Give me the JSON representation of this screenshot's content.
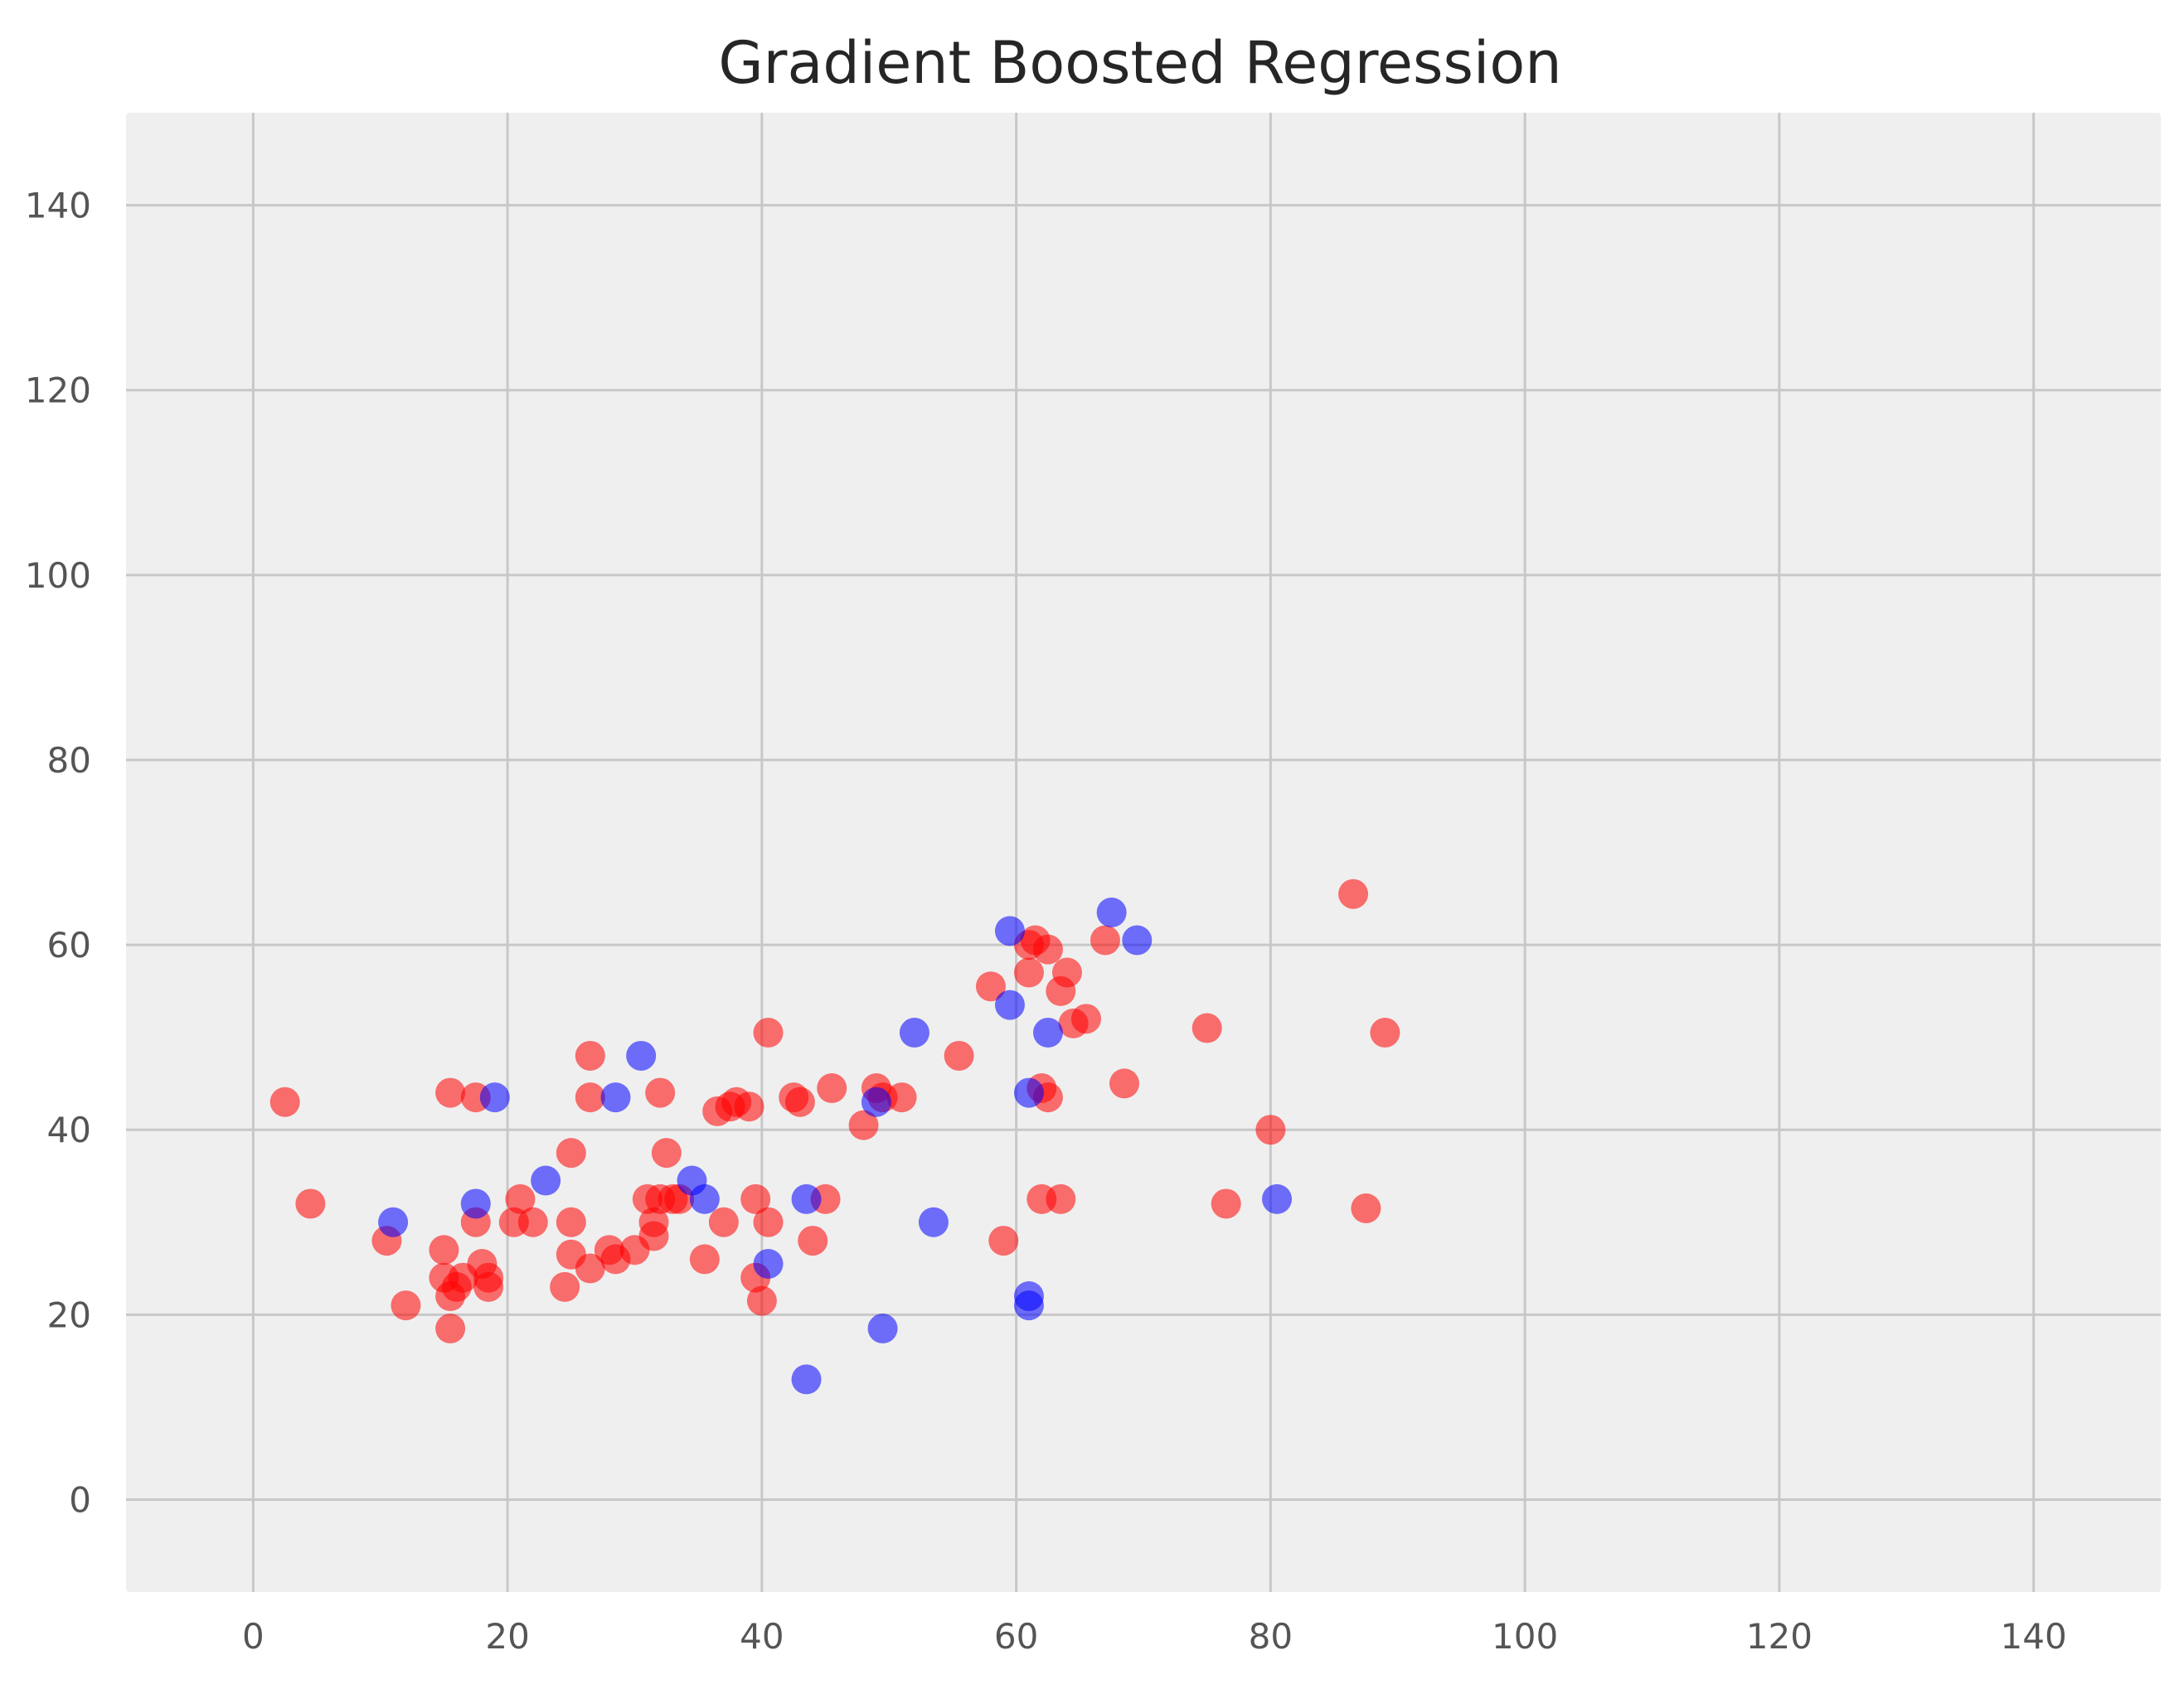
{
  "chart_data": {
    "type": "scatter",
    "title": "Gradient Boosted Regression",
    "xlabel": "",
    "ylabel": "",
    "xlim": [
      -10,
      150
    ],
    "ylim": [
      -10,
      150
    ],
    "x_ticks": [
      0,
      20,
      40,
      60,
      80,
      100,
      120,
      140
    ],
    "y_ticks": [
      0,
      20,
      40,
      60,
      80,
      100,
      120,
      140
    ],
    "grid": true,
    "background_color": "#efefef",
    "grid_color": "#c8c8c8",
    "series": [
      {
        "color": "#ff0000",
        "opacity": 0.55,
        "points": [
          [
            2.5,
            43
          ],
          [
            4.5,
            32
          ],
          [
            10.5,
            28
          ],
          [
            12,
            21
          ],
          [
            15,
            27
          ],
          [
            15,
            24
          ],
          [
            15.5,
            44
          ],
          [
            15.5,
            22
          ],
          [
            15.5,
            18.5
          ],
          [
            16,
            23
          ],
          [
            16.5,
            24
          ],
          [
            17.5,
            30
          ],
          [
            17.5,
            43.5
          ],
          [
            18,
            25.5
          ],
          [
            18.5,
            24
          ],
          [
            18.5,
            23
          ],
          [
            20.5,
            30
          ],
          [
            21,
            32.5
          ],
          [
            22,
            30
          ],
          [
            24.5,
            23
          ],
          [
            25,
            30
          ],
          [
            25,
            26.5
          ],
          [
            25,
            37.5
          ],
          [
            26.5,
            48
          ],
          [
            26.5,
            43.5
          ],
          [
            26.5,
            25
          ],
          [
            28,
            27
          ],
          [
            28.5,
            26
          ],
          [
            30,
            27
          ],
          [
            31,
            32.5
          ],
          [
            31.5,
            30
          ],
          [
            31.5,
            28.5
          ],
          [
            32,
            32.5
          ],
          [
            32,
            44
          ],
          [
            32.5,
            37.5
          ],
          [
            33,
            32.5
          ],
          [
            33.5,
            32.5
          ],
          [
            35.5,
            26
          ],
          [
            36.5,
            42
          ],
          [
            37,
            30
          ],
          [
            37.5,
            42.5
          ],
          [
            38,
            43
          ],
          [
            39,
            42.5
          ],
          [
            39.5,
            32.5
          ],
          [
            39.5,
            24
          ],
          [
            40,
            21.5
          ],
          [
            40.5,
            50.5
          ],
          [
            40.5,
            30
          ],
          [
            42.5,
            43.5
          ],
          [
            43,
            43
          ],
          [
            44,
            28
          ],
          [
            45,
            32.5
          ],
          [
            45.5,
            44.5
          ],
          [
            48,
            40.5
          ],
          [
            49,
            44.5
          ],
          [
            49.5,
            43.5
          ],
          [
            51,
            43.5
          ],
          [
            55.5,
            48
          ],
          [
            58,
            55.5
          ],
          [
            59,
            28
          ],
          [
            61,
            57
          ],
          [
            61,
            60
          ],
          [
            61.5,
            60.5
          ],
          [
            62,
            32.5
          ],
          [
            62,
            44.5
          ],
          [
            62.5,
            43.5
          ],
          [
            62.5,
            59.5
          ],
          [
            63.5,
            32.5
          ],
          [
            63.5,
            55
          ],
          [
            64,
            57
          ],
          [
            64.5,
            51.5
          ],
          [
            65.5,
            52
          ],
          [
            67,
            60.5
          ],
          [
            68.5,
            45
          ],
          [
            75,
            51
          ],
          [
            76.5,
            32
          ],
          [
            80,
            40
          ],
          [
            86.5,
            65.5
          ],
          [
            87.5,
            31.5
          ],
          [
            89,
            50.5
          ]
        ]
      },
      {
        "color": "#0000ff",
        "opacity": 0.55,
        "points": [
          [
            11,
            30
          ],
          [
            17.5,
            32
          ],
          [
            19,
            43.5
          ],
          [
            23,
            34.5
          ],
          [
            28.5,
            43.5
          ],
          [
            30.5,
            48
          ],
          [
            34.5,
            34.5
          ],
          [
            35.5,
            32.5
          ],
          [
            40.5,
            25.5
          ],
          [
            43.5,
            32.5
          ],
          [
            43.5,
            13
          ],
          [
            49,
            43
          ],
          [
            49.5,
            18.5
          ],
          [
            52,
            50.5
          ],
          [
            53.5,
            30
          ],
          [
            59.5,
            61.5
          ],
          [
            59.5,
            53.5
          ],
          [
            61,
            44
          ],
          [
            61,
            22
          ],
          [
            61,
            21
          ],
          [
            62.5,
            50.5
          ],
          [
            67.5,
            63.5
          ],
          [
            69.5,
            60.5
          ],
          [
            80.5,
            32.5
          ]
        ]
      }
    ]
  }
}
